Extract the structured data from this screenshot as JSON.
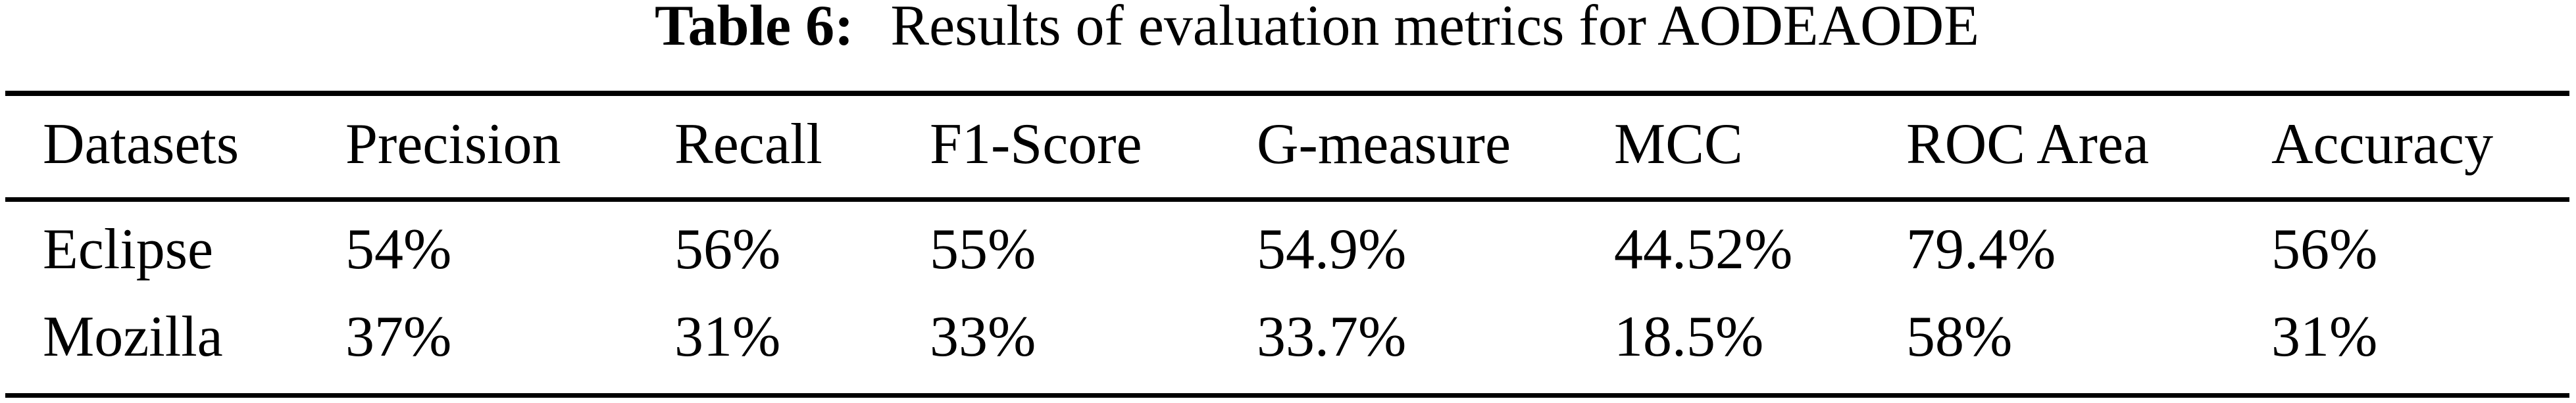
{
  "title": {
    "label": "Table 6:",
    "text": "Results of evaluation metrics for AODEAODE"
  },
  "table": {
    "columns": [
      "Datasets",
      "Precision",
      "Recall",
      "F1-Score",
      "G-measure",
      "MCC",
      "ROC Area",
      "Accuracy"
    ],
    "rows": [
      {
        "cells": [
          "Eclipse",
          "54%",
          "56%",
          "55%",
          "54.9%",
          "44.52%",
          "79.4%",
          "56%"
        ]
      },
      {
        "cells": [
          "Mozilla",
          "37%",
          "31%",
          "33%",
          "33.7%",
          "18.5%",
          "58%",
          "31%"
        ]
      }
    ]
  },
  "colors": {
    "text": "#000000",
    "background": "#ffffff",
    "rule": "#000000"
  }
}
